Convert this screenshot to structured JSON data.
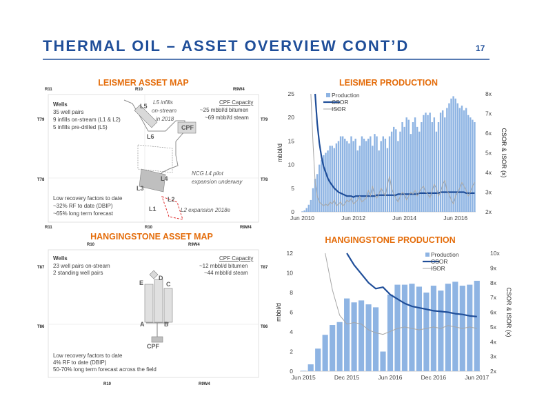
{
  "header": {
    "title": "THERMAL OIL – ASSET OVERVIEW CONT’D",
    "page": "17"
  },
  "maps": [
    {
      "title": "LEISMER ASSET MAP",
      "labels": [
        "R11",
        "R10",
        "R9W4",
        "Wells",
        "35 well pairs",
        "9 infills on-stream (L1 & L2)",
        "5 infills pre-drilled (L5)",
        "L5",
        "L5 infills",
        "on-stream",
        "in 2018",
        "CPF Capacity",
        "~25 mbbl/d bitumen",
        "~69 mbbl/d steam",
        "CPF",
        "L6",
        "NCG L4 pilot",
        "expansion underway",
        "L4",
        "L3",
        "L2",
        "L1",
        "Low recovery factors to date",
        "~32% RF to date (DBIP)",
        "~65% long term forecast",
        "L2 expansion 2018e",
        "T79",
        "T79",
        "T78",
        "T78",
        "R11",
        "R10",
        "R9W4"
      ]
    },
    {
      "title": "HANGINGSTONE ASSET MAP",
      "labels": [
        "R10",
        "R9W4",
        "Wells",
        "23 well pairs on-stream",
        "2 standing well pairs",
        "CPF Capacity",
        "~12 mbbl/d bitumen",
        "~44 mbbl/d steam",
        "D",
        "E",
        "C",
        "A",
        "B",
        "CPF",
        "Low recovery factors to date",
        "4% RF to date (DBIP)",
        "50-70% long term forecast across the field",
        "T87",
        "T87",
        "T86",
        "T86",
        "R10",
        "R9W4"
      ]
    }
  ],
  "chart_data": [
    {
      "type": "bar",
      "title": "LEISMER PRODUCTION",
      "ylabel": "mbbl/d",
      "y2label": "CSOR & ISOR (x)",
      "legend": "upper left",
      "grid": false,
      "categories": [
        "Jun 2010",
        null,
        null,
        null,
        null,
        null,
        null,
        null,
        null,
        null,
        null,
        null,
        null,
        null,
        null,
        null,
        null,
        null,
        null,
        null,
        null,
        null,
        null,
        null,
        "Jun 2012",
        null,
        null,
        null,
        null,
        null,
        null,
        null,
        null,
        null,
        null,
        null,
        null,
        null,
        null,
        null,
        null,
        null,
        null,
        null,
        null,
        null,
        null,
        null,
        "Jun 2014",
        null,
        null,
        null,
        null,
        null,
        null,
        null,
        null,
        null,
        null,
        null,
        null,
        null,
        null,
        null,
        null,
        null,
        null,
        null,
        null,
        null,
        null,
        null,
        "Jun 2016",
        null,
        null,
        null,
        null,
        null,
        null,
        null,
        null,
        null
      ],
      "series": [
        {
          "name": "Production",
          "type": "bar",
          "color": "#8eb4e3",
          "values": [
            0.1,
            0.3,
            0.8,
            1.5,
            2.5,
            5,
            7,
            8,
            10,
            11,
            12,
            12.5,
            13,
            14,
            14,
            13.5,
            14.5,
            15,
            16,
            16,
            15.5,
            15,
            14.5,
            16,
            15,
            15.5,
            13,
            14,
            16,
            15.5,
            15,
            15.5,
            16,
            14,
            16.5,
            16,
            13,
            15,
            16,
            15.5,
            13.5,
            16,
            17,
            18,
            17.5,
            15,
            17,
            19,
            18,
            20,
            19.5,
            16.5,
            19,
            20,
            18,
            17,
            19,
            20.5,
            21,
            20.5,
            21,
            19,
            20,
            17,
            19,
            21,
            21.5,
            20,
            22,
            23,
            24,
            24.5,
            24,
            23,
            22,
            22.5,
            21.5,
            22,
            20.5,
            20,
            19.5,
            19
          ]
        },
        {
          "name": "CSOR",
          "type": "line",
          "axis": "y2",
          "color": "#1f4e99",
          "width": 2.2,
          "values": [
            null,
            null,
            null,
            null,
            null,
            null,
            8,
            6.5,
            5.5,
            4.8,
            4.3,
            4.0,
            3.7,
            3.5,
            3.35,
            3.2,
            3.1,
            3.0,
            2.95,
            2.9,
            2.85,
            2.8,
            2.8,
            2.8,
            2.75,
            2.8,
            2.8,
            2.8,
            2.8,
            2.8,
            2.8,
            2.8,
            2.8,
            2.8,
            2.8,
            2.85,
            2.85,
            2.85,
            2.85,
            2.85,
            2.85,
            2.85,
            2.85,
            2.85,
            2.85,
            2.9,
            2.9,
            2.9,
            2.9,
            2.9,
            2.9,
            2.9,
            2.9,
            2.9,
            2.9,
            2.95,
            2.95,
            2.95,
            2.95,
            2.95,
            2.95,
            2.95,
            2.95,
            2.95,
            2.95,
            3.0,
            3.0,
            3.0,
            3.0,
            3.0,
            3.0,
            3.0,
            3.0,
            3.0,
            3.0,
            3.0,
            3.0,
            2.95,
            2.95,
            2.95,
            2.95,
            2.95
          ]
        },
        {
          "name": "ISOR",
          "type": "line",
          "axis": "y2",
          "color": "#a6a6a6",
          "width": 1,
          "values": [
            null,
            null,
            null,
            null,
            8,
            5.5,
            3.5,
            2.8,
            2.5,
            2.4,
            2.3,
            2.4,
            2.3,
            2.5,
            2.4,
            2.6,
            2.3,
            2.4,
            2.5,
            2.3,
            2.4,
            2.6,
            2.5,
            2.7,
            2.4,
            2.5,
            2.6,
            2.8,
            2.5,
            2.6,
            2.7,
            3.1,
            2.8,
            3.3,
            2.9,
            2.7,
            2.9,
            3.2,
            3.0,
            2.8,
            3.4,
            3.8,
            3.2,
            2.9,
            2.7,
            2.5,
            2.8,
            3.0,
            2.9,
            2.6,
            2.8,
            3.0,
            2.9,
            3.1,
            2.8,
            3.0,
            3.2,
            3.3,
            3.0,
            2.9,
            2.7,
            3.1,
            3.4,
            3.2,
            2.8,
            3.0,
            3.4,
            3.6,
            3.1,
            2.9,
            2.6,
            2.4,
            2.8,
            3.0,
            3.2,
            3.5,
            3.3,
            3.1,
            2.8,
            3.0,
            3.3,
            3.5
          ]
        }
      ],
      "ylim": [
        0,
        25
      ],
      "yticks": [
        0,
        5,
        10,
        15,
        20,
        25
      ],
      "y2lim": [
        2,
        8
      ],
      "y2ticks": [
        {
          "value": 2,
          "label": "2x"
        },
        {
          "value": 3,
          "label": "3x"
        },
        {
          "value": 4,
          "label": "4x"
        },
        {
          "value": 5,
          "label": "5x"
        },
        {
          "value": 6,
          "label": "6x"
        },
        {
          "value": 7,
          "label": "7x"
        },
        {
          "value": 8,
          "label": "8x"
        }
      ]
    },
    {
      "type": "bar",
      "title": "HANGINGSTONE PRODUCTION",
      "ylabel": "mbbl/d",
      "y2label": "CSOR & ISOR (x)",
      "legend": "upper right",
      "grid": false,
      "categories": [
        "Jun 2015",
        null,
        null,
        null,
        null,
        null,
        "Dec 2015",
        null,
        null,
        null,
        null,
        null,
        "Jun 2016",
        null,
        null,
        null,
        null,
        null,
        "Dec 2016",
        null,
        null,
        null,
        null,
        null,
        "Jun 2017"
      ],
      "series": [
        {
          "name": "Production",
          "type": "bar",
          "color": "#8eb4e3",
          "values": [
            0.05,
            0.7,
            2.3,
            3.7,
            4.7,
            5.0,
            7.4,
            7.0,
            7.2,
            6.8,
            6.5,
            2.0,
            7.8,
            8.8,
            8.8,
            8.9,
            8.6,
            8.0,
            8.7,
            8.2,
            8.9,
            9.1,
            8.7,
            8.8,
            9.2
          ]
        },
        {
          "name": "CSOR",
          "type": "line",
          "axis": "y2",
          "color": "#1f4e99",
          "width": 2.2,
          "values": [
            null,
            null,
            null,
            null,
            null,
            null,
            10,
            9.2,
            8.6,
            8.0,
            7.6,
            7.7,
            7.2,
            6.9,
            6.6,
            6.4,
            6.3,
            6.2,
            6.1,
            6.05,
            6.0,
            5.9,
            5.85,
            5.75,
            5.7
          ]
        },
        {
          "name": "ISOR",
          "type": "line",
          "axis": "y2",
          "color": "#a6a6a6",
          "width": 1,
          "values": [
            null,
            null,
            null,
            10,
            7.5,
            5.8,
            5.2,
            5.3,
            5.2,
            4.8,
            4.6,
            4.5,
            4.7,
            4.9,
            5.0,
            4.9,
            4.8,
            4.9,
            5.0,
            4.9,
            5.1,
            5.0,
            4.9,
            5.0,
            4.9
          ]
        }
      ],
      "ylim": [
        0,
        12
      ],
      "yticks": [
        0,
        2,
        4,
        6,
        8,
        10,
        12
      ],
      "y2lim": [
        2,
        10
      ],
      "y2ticks": [
        {
          "value": 2,
          "label": "2x"
        },
        {
          "value": 3,
          "label": "3x"
        },
        {
          "value": 4,
          "label": "4x"
        },
        {
          "value": 5,
          "label": "5x"
        },
        {
          "value": 6,
          "label": "6x"
        },
        {
          "value": 7,
          "label": "7x"
        },
        {
          "value": 8,
          "label": "8x"
        },
        {
          "value": 9,
          "label": "9x"
        },
        {
          "value": 10,
          "label": "10x"
        }
      ]
    }
  ]
}
